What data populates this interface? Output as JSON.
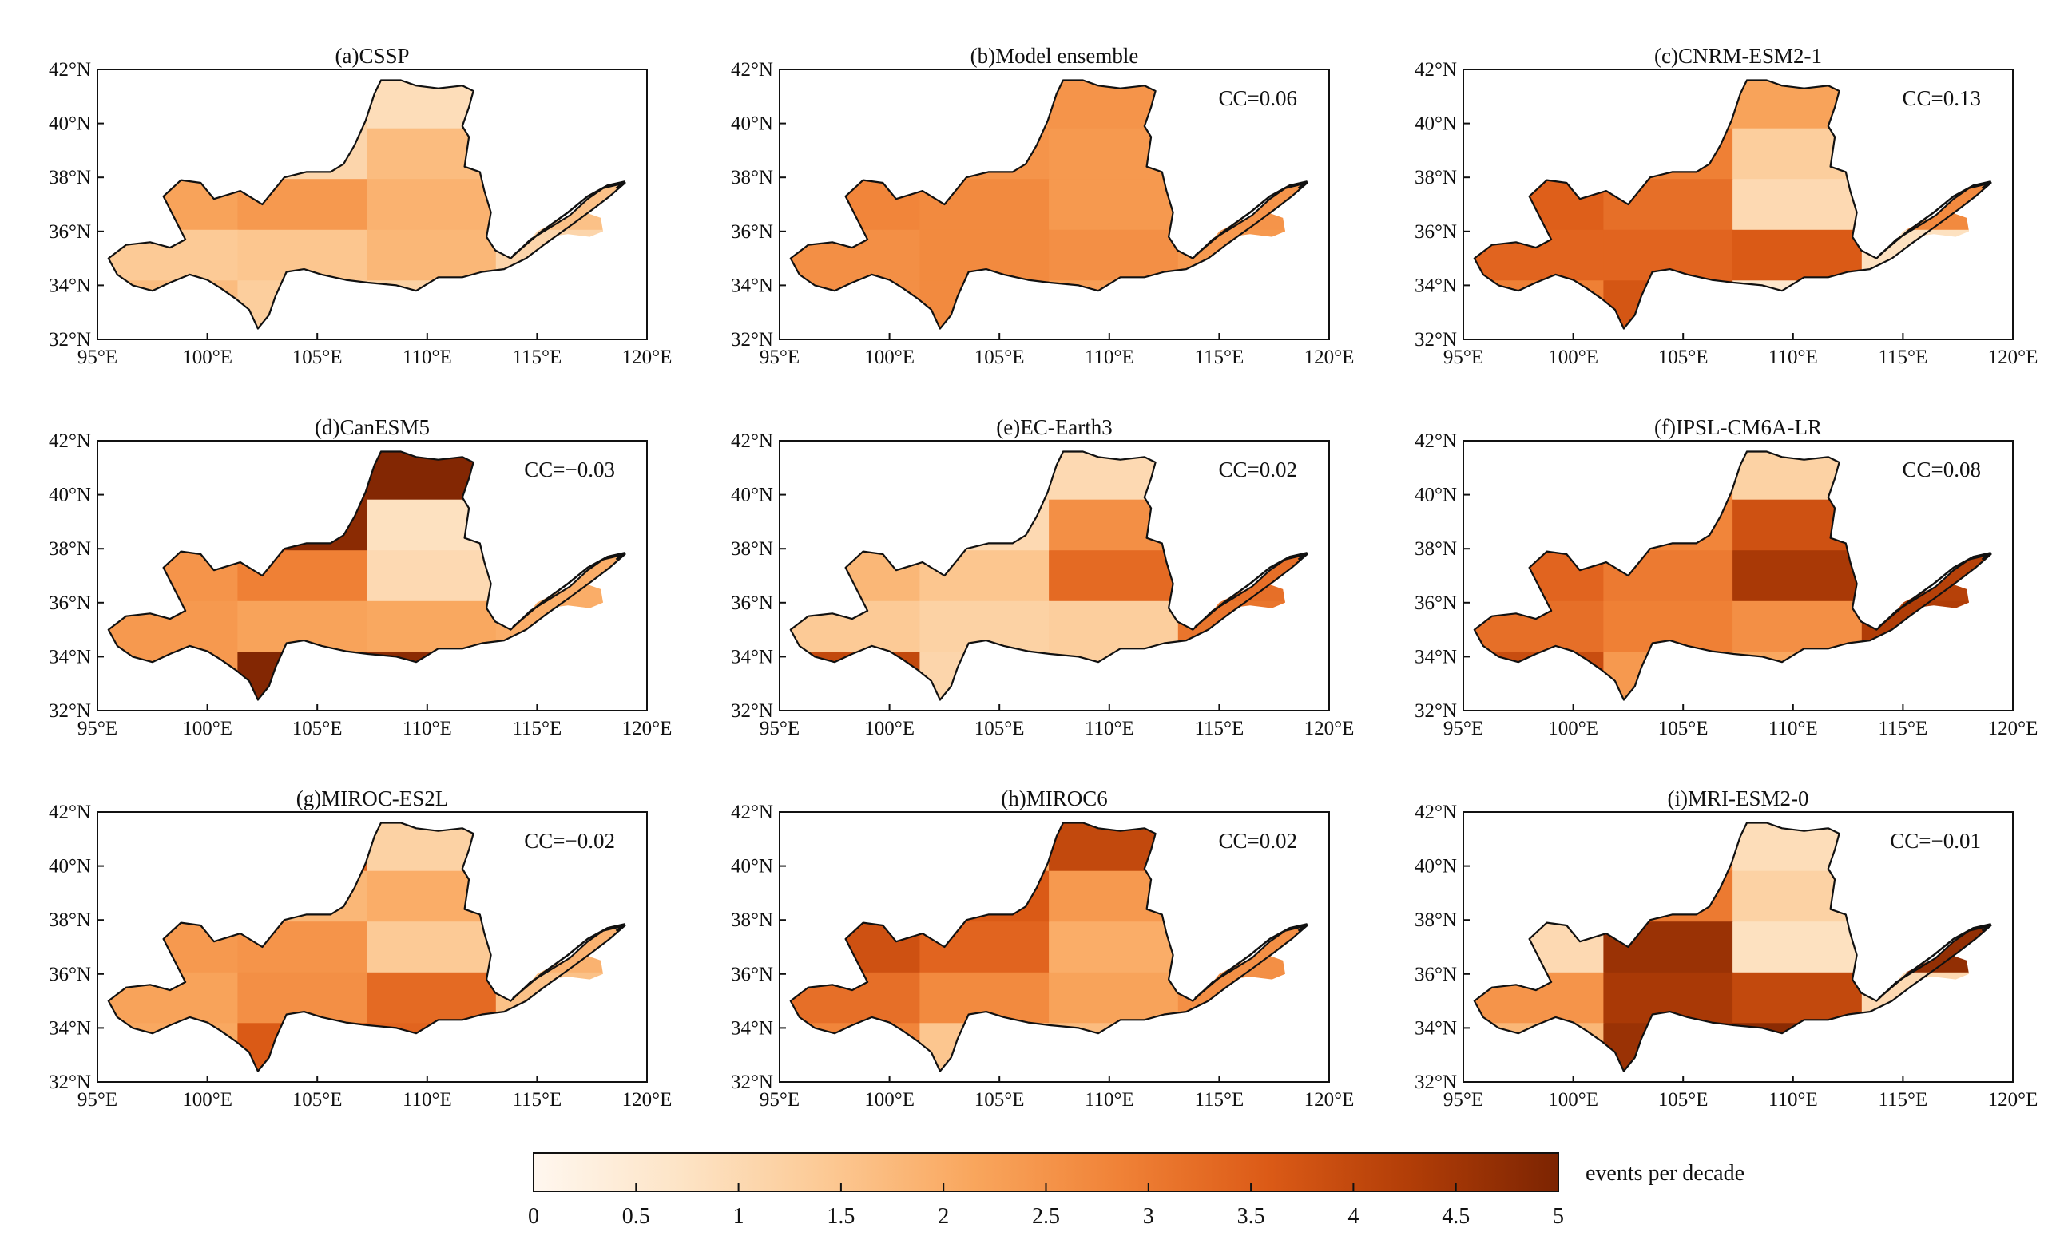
{
  "figure": {
    "colorbar": {
      "ticks": [
        "0",
        "0.5",
        "1",
        "1.5",
        "2",
        "2.5",
        "3",
        "3.5",
        "4",
        "4.5",
        "5"
      ],
      "unit_label": "events per decade",
      "colors": [
        "#fff7ef",
        "#fde4c6",
        "#fcc994",
        "#f9a65d",
        "#f08237",
        "#dc5b17",
        "#b13d07",
        "#7c2402"
      ]
    },
    "axes": {
      "lat_ticks": [
        "42°N",
        "40°N",
        "38°N",
        "36°N",
        "34°N",
        "32°N"
      ],
      "lon_ticks": [
        "95°E",
        "100°E",
        "105°E",
        "110°E",
        "115°E",
        "120°E"
      ],
      "lat_values": [
        42,
        40,
        38,
        36,
        34,
        32
      ],
      "lon_values": [
        95,
        100,
        105,
        110,
        115,
        120
      ]
    },
    "panels": [
      {
        "title": "(a)CSSP",
        "cc": null,
        "field": [
          1.8,
          1.2,
          0.9,
          1.3,
          1.5,
          1.1,
          1.7,
          2.0,
          2.2,
          2.4,
          1.9,
          1.6,
          1.4,
          1.5,
          1.8,
          1.1,
          1.7,
          1.3,
          1.2,
          1.6
        ]
      },
      {
        "title": "(b)Model ensemble",
        "cc": "CC=0.06",
        "field": [
          2.6,
          2.4,
          2.5,
          2.6,
          2.7,
          2.5,
          2.4,
          2.7,
          2.8,
          2.7,
          2.4,
          2.5,
          2.6,
          2.7,
          2.6,
          2.4,
          2.6,
          2.7,
          2.3,
          2.2
        ]
      },
      {
        "title": "(c)CNRM-ESM2-1",
        "cc": "CC=0.13",
        "field": [
          2.4,
          2.3,
          2.2,
          3.1,
          3.3,
          2.9,
          1.3,
          2.8,
          3.5,
          3.2,
          1.0,
          2.7,
          3.4,
          3.4,
          3.6,
          0.8,
          2.9,
          3.7,
          0.6,
          0.8
        ]
      },
      {
        "title": "(d)CanESM5",
        "cc": "CC=−0.03",
        "field": [
          1.2,
          4.8,
          4.9,
          1.8,
          4.7,
          4.8,
          0.8,
          2.2,
          2.5,
          2.9,
          1.0,
          2.0,
          2.4,
          2.2,
          2.1,
          2.0,
          2.4,
          4.9,
          4.8,
          3.8
        ]
      },
      {
        "title": "(e)EC-Earth3",
        "cc": "CC=0.02",
        "field": [
          1.0,
          1.1,
          1.0,
          1.3,
          1.2,
          1.0,
          2.6,
          1.4,
          1.8,
          1.5,
          3.3,
          3.2,
          1.4,
          1.2,
          1.3,
          3.1,
          4.0,
          1.1,
          1.3,
          1.0
        ]
      },
      {
        "title": "(f)IPSL-CM6A-LR",
        "cc": "CC=0.08",
        "field": [
          3.0,
          2.8,
          1.2,
          3.5,
          3.6,
          2.8,
          3.8,
          3.9,
          3.4,
          3.0,
          4.4,
          4.2,
          3.2,
          2.9,
          2.6,
          4.3,
          3.9,
          2.4,
          2.1,
          2.0
        ]
      },
      {
        "title": "(g)MIROC-ES2L",
        "cc": "CC=−0.02",
        "field": [
          2.6,
          3.4,
          1.2,
          2.4,
          2.7,
          1.8,
          2.0,
          2.2,
          2.4,
          2.5,
          1.4,
          1.9,
          2.2,
          2.6,
          3.3,
          1.6,
          2.1,
          3.6,
          3.4,
          3.0
        ]
      },
      {
        "title": "(h)MIROC6",
        "cc": "CC=0.02",
        "field": [
          1.2,
          2.2,
          4.0,
          3.0,
          2.8,
          3.6,
          2.4,
          3.3,
          3.8,
          3.4,
          2.0,
          2.6,
          3.2,
          2.7,
          2.2,
          2.6,
          2.8,
          1.5,
          1.7,
          1.2
        ]
      },
      {
        "title": "(i)MRI-ESM2-0",
        "cc": "CC=−0.01",
        "field": [
          3.6,
          2.8,
          0.9,
          4.3,
          3.4,
          3.0,
          1.2,
          4.5,
          1.0,
          4.6,
          0.8,
          4.7,
          2.5,
          4.4,
          4.0,
          1.0,
          1.8,
          4.6,
          4.8,
          0.9
        ]
      }
    ]
  }
}
